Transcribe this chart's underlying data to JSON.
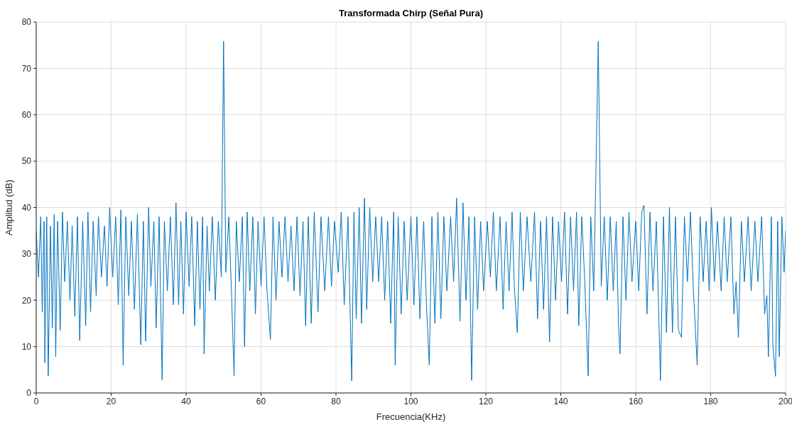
{
  "chart_data": {
    "type": "line",
    "title": "Transformada Chirp (Señal Pura)",
    "xlabel": "Frecuencia(KHz)",
    "ylabel": "Amplitud (dB)",
    "xlim": [
      0,
      200
    ],
    "xticks": [
      0,
      20,
      40,
      60,
      80,
      100,
      120,
      140,
      160,
      180,
      200
    ],
    "ylim": [
      0,
      80
    ],
    "yticks": [
      0,
      10,
      20,
      30,
      40,
      50,
      60,
      70,
      80
    ],
    "grid": true,
    "marker": "none",
    "line_style": "solid",
    "series": [
      {
        "color": "#0072bd",
        "x": [
          0,
          0.6,
          1.2,
          1.6,
          2.1,
          2.3,
          2.8,
          3.2,
          3.8,
          4.3,
          4.8,
          5.2,
          5.7,
          6.4,
          7,
          7.6,
          8.3,
          9,
          9.6,
          10.3,
          11,
          11.6,
          12.4,
          13.2,
          13.8,
          14.5,
          15.2,
          16,
          16.6,
          17.4,
          18.2,
          18.9,
          19.6,
          20.4,
          21.2,
          21.9,
          22.6,
          23.2,
          23.9,
          24.7,
          25.4,
          26.2,
          27,
          27.9,
          28.6,
          29.2,
          30,
          30.6,
          31.4,
          32,
          32.8,
          33.6,
          34.2,
          35,
          35.8,
          36.6,
          37.3,
          38,
          38.6,
          39.3,
          40,
          40.8,
          41.5,
          42.3,
          43,
          43.7,
          44.4,
          44.8,
          45.6,
          46.2,
          47,
          47.8,
          48.6,
          49.4,
          50,
          50.6,
          51.4,
          52.1,
          52.8,
          53.4,
          54.2,
          55,
          55.6,
          56.3,
          57,
          57.8,
          58.5,
          59.2,
          60,
          60.8,
          61.6,
          62.5,
          63.2,
          64,
          64.8,
          65.6,
          66.4,
          67.2,
          68,
          68.8,
          69.6,
          70.4,
          71.2,
          71.9,
          72.6,
          73.4,
          74.2,
          75.2,
          76,
          77,
          78,
          78.8,
          79.6,
          80.6,
          81.4,
          82.2,
          83.2,
          84.2,
          84.8,
          85.4,
          86.2,
          86.8,
          87.6,
          88.2,
          89,
          89.8,
          90.6,
          91.4,
          92.2,
          93,
          93.8,
          94.6,
          95.4,
          95.8,
          96.6,
          97.4,
          98.2,
          99,
          100,
          100.8,
          101.6,
          102.4,
          103.4,
          104.2,
          104.9,
          105.6,
          106.4,
          107.2,
          108,
          108.8,
          109.6,
          110.6,
          111.4,
          112.2,
          113.1,
          113.9,
          114.7,
          115.5,
          116.2,
          117,
          117.8,
          118.6,
          119.4,
          120.4,
          121.2,
          122,
          122.8,
          123.8,
          124.6,
          125.4,
          126.2,
          127,
          127.6,
          128.4,
          129.2,
          130,
          131,
          132,
          133,
          133.8,
          134.6,
          135.4,
          136.2,
          137,
          137.8,
          138.6,
          139.4,
          140.2,
          141,
          141.8,
          142.6,
          143.4,
          144.2,
          144.8,
          145.6,
          146.4,
          147.3,
          148,
          148.8,
          150,
          150.8,
          151.6,
          152.4,
          153.2,
          154,
          154.8,
          155.4,
          155.8,
          156.6,
          157.4,
          158.2,
          159,
          160,
          160.8,
          161.6,
          162.2,
          163,
          163.8,
          164.6,
          165.5,
          166.6,
          167.4,
          168.2,
          169,
          169.8,
          170.6,
          171.4,
          172.2,
          173,
          173.8,
          174.6,
          175.4,
          176.4,
          177.2,
          178,
          178.8,
          179.6,
          180.2,
          181,
          181.8,
          182.8,
          183.6,
          184.4,
          185.4,
          186.2,
          186.8,
          187.4,
          188.2,
          189,
          190,
          190.8,
          191.8,
          192.6,
          193.6,
          194.4,
          195,
          195.4,
          196.2,
          196.6,
          197.3,
          197.9,
          198.3,
          199,
          199.6,
          200
        ],
        "values": [
          35,
          25,
          38,
          17.5,
          37,
          6.5,
          38,
          3.7,
          36,
          14,
          38.5,
          7.8,
          37,
          13.5,
          39,
          24,
          37,
          20,
          36,
          16.5,
          38,
          11.3,
          37,
          14.5,
          39,
          17.5,
          37,
          21,
          38,
          25,
          36,
          23,
          40,
          25,
          38,
          19,
          39.5,
          6,
          38,
          21,
          37,
          18,
          38.5,
          10.4,
          37,
          11.2,
          40,
          23,
          37,
          14,
          38,
          2.8,
          37,
          22,
          38,
          19,
          41,
          19,
          37,
          17,
          39,
          23,
          38,
          14.5,
          37,
          18,
          38,
          8.4,
          36,
          22,
          38,
          20,
          37,
          25,
          75.8,
          26,
          38,
          22,
          3.7,
          37,
          24,
          38,
          10,
          39,
          22,
          38,
          17,
          37,
          23,
          38,
          22,
          11.5,
          38,
          20,
          37,
          25,
          38,
          24,
          36,
          22,
          38,
          21,
          37,
          14.5,
          38,
          15,
          39,
          17.5,
          38,
          22,
          38,
          23,
          37,
          26,
          39,
          19,
          38,
          2.6,
          39,
          16,
          40,
          15,
          42,
          18,
          40,
          24,
          38,
          24,
          38,
          20,
          37,
          15,
          39,
          6,
          38,
          17,
          37,
          20,
          38,
          19,
          38,
          16,
          37,
          18,
          6,
          38,
          15,
          39,
          16,
          38,
          22,
          38,
          24,
          42,
          15.5,
          41,
          20,
          38,
          2.7,
          38,
          18,
          37,
          22,
          37,
          25,
          39,
          22,
          38,
          18,
          37,
          22,
          39,
          23,
          13,
          39,
          22,
          38,
          24,
          39,
          16,
          37,
          18,
          38,
          11,
          38,
          20,
          37,
          24,
          39,
          17,
          38,
          22,
          39,
          14.5,
          38,
          24,
          3.7,
          38,
          22,
          75.8,
          23,
          38,
          20,
          38,
          22,
          37,
          15,
          8.4,
          38,
          20,
          39,
          24,
          37,
          22,
          39,
          40.5,
          17,
          39,
          22,
          37,
          2.7,
          38,
          13,
          40,
          13,
          38,
          13.5,
          12,
          38,
          24,
          39,
          22,
          6,
          38,
          24,
          37,
          22,
          40,
          24,
          37,
          22,
          38,
          24,
          38,
          17,
          24,
          12,
          37,
          24,
          38,
          22,
          37,
          24,
          38,
          17,
          21,
          7.8,
          38,
          10.4,
          3.6,
          37,
          7.8,
          38,
          26,
          35
        ]
      }
    ]
  }
}
